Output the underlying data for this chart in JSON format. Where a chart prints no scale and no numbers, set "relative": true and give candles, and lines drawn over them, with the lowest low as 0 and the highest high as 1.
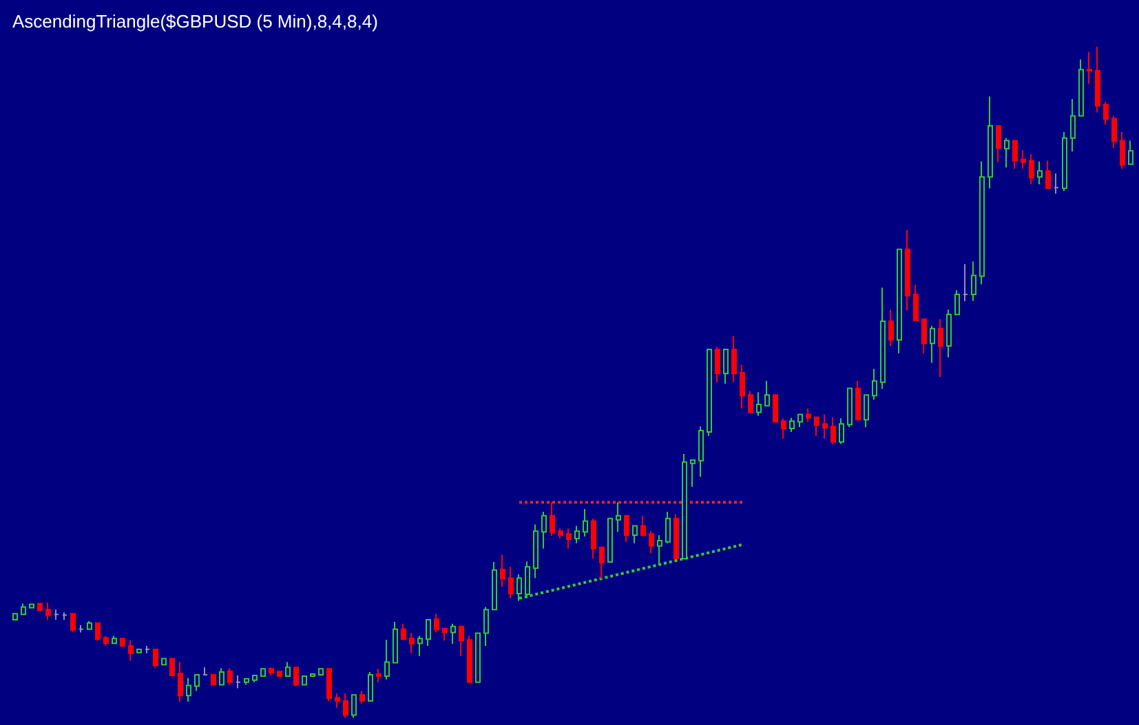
{
  "chart_data": {
    "type": "candlestick",
    "relative": true,
    "title": "AscendingTriangle($GBPUSD (5 Min),8,4,8,4)",
    "tick_labels": false,
    "grid": false,
    "categories": [
      null,
      null,
      null,
      null,
      null,
      null,
      null,
      null,
      null,
      null,
      null,
      null,
      null,
      null,
      null,
      null,
      null,
      null,
      null,
      null,
      null,
      null,
      null,
      null,
      null,
      null,
      null,
      null,
      null,
      null,
      null,
      null,
      null,
      null,
      null,
      null,
      null,
      null,
      null,
      null,
      null,
      null,
      null,
      null,
      null,
      null,
      null,
      null,
      null,
      null,
      null,
      null,
      null,
      null,
      null,
      null,
      null,
      null,
      null,
      null,
      null,
      null,
      null,
      null,
      null,
      null,
      null,
      null,
      null,
      null,
      null,
      null,
      null,
      null,
      null,
      null,
      null,
      null,
      null,
      null,
      null,
      null,
      null,
      null,
      null,
      null,
      null,
      null,
      null,
      null,
      null,
      null,
      null,
      null,
      null,
      null,
      null,
      null,
      null,
      null,
      null,
      null,
      null,
      null,
      null,
      null,
      null,
      null,
      null,
      null,
      null,
      null,
      null,
      null,
      null,
      null,
      null,
      null,
      null,
      null,
      null,
      null,
      null,
      null,
      null,
      null,
      null,
      null,
      null,
      null,
      null,
      null,
      null,
      null,
      null,
      null
    ],
    "ohlc": [
      [
        0.146,
        0.155,
        0.145,
        0.155
      ],
      [
        0.154,
        0.17,
        0.154,
        0.165
      ],
      [
        0.164,
        0.169,
        0.164,
        0.169
      ],
      [
        0.17,
        0.17,
        0.16,
        0.16
      ],
      [
        0.161,
        0.172,
        0.146,
        0.153
      ],
      [
        0.154,
        0.161,
        0.146,
        0.154
      ],
      [
        0.153,
        0.157,
        0.146,
        0.153
      ],
      [
        0.155,
        0.155,
        0.128,
        0.131
      ],
      [
        0.132,
        0.138,
        0.127,
        0.132
      ],
      [
        0.132,
        0.144,
        0.132,
        0.141
      ],
      [
        0.141,
        0.141,
        0.115,
        0.117
      ],
      [
        0.119,
        0.122,
        0.107,
        0.111
      ],
      [
        0.111,
        0.122,
        0.111,
        0.118
      ],
      [
        0.118,
        0.118,
        0.107,
        0.107
      ],
      [
        0.107,
        0.116,
        0.085,
        0.096
      ],
      [
        0.097,
        0.102,
        0.097,
        0.102
      ],
      [
        0.102,
        0.107,
        0.096,
        0.102
      ],
      [
        0.102,
        0.102,
        0.074,
        0.078
      ],
      [
        0.079,
        0.088,
        0.079,
        0.088
      ],
      [
        0.088,
        0.088,
        0.062,
        0.063
      ],
      [
        0.066,
        0.083,
        0.024,
        0.033
      ],
      [
        0.033,
        0.059,
        0.024,
        0.048
      ],
      [
        0.047,
        0.064,
        0.04,
        0.064
      ],
      [
        0.064,
        0.075,
        0.064,
        0.064
      ],
      [
        0.064,
        0.064,
        0.049,
        0.049
      ],
      [
        0.049,
        0.074,
        0.049,
        0.068
      ],
      [
        0.069,
        0.074,
        0.049,
        0.053
      ],
      [
        0.053,
        0.063,
        0.044,
        0.053
      ],
      [
        0.053,
        0.058,
        0.049,
        0.058
      ],
      [
        0.056,
        0.063,
        0.053,
        0.063
      ],
      [
        0.062,
        0.073,
        0.062,
        0.073
      ],
      [
        0.073,
        0.075,
        0.063,
        0.067
      ],
      [
        0.069,
        0.069,
        0.062,
        0.062
      ],
      [
        0.062,
        0.083,
        0.062,
        0.075
      ],
      [
        0.075,
        0.075,
        0.047,
        0.049
      ],
      [
        0.049,
        0.062,
        0.049,
        0.062
      ],
      [
        0.062,
        0.065,
        0.062,
        0.065
      ],
      [
        0.064,
        0.073,
        0.064,
        0.073
      ],
      [
        0.073,
        0.073,
        0.025,
        0.029
      ],
      [
        0.03,
        0.036,
        0.015,
        0.025
      ],
      [
        0.025,
        0.036,
        0,
        0.004
      ],
      [
        0.004,
        0.034,
        0,
        0.034
      ],
      [
        0.034,
        0.04,
        0.021,
        0.025
      ],
      [
        0.025,
        0.068,
        0.025,
        0.064
      ],
      [
        0.065,
        0.073,
        0.053,
        0.062
      ],
      [
        0.062,
        0.116,
        0.057,
        0.083
      ],
      [
        0.082,
        0.143,
        0.082,
        0.132
      ],
      [
        0.132,
        0.14,
        0.117,
        0.117
      ],
      [
        0.118,
        0.126,
        0.096,
        0.11
      ],
      [
        0.111,
        0.122,
        0.092,
        0.118
      ],
      [
        0.117,
        0.146,
        0.107,
        0.146
      ],
      [
        0.147,
        0.155,
        0.127,
        0.131
      ],
      [
        0.133,
        0.133,
        0.115,
        0.127
      ],
      [
        0.127,
        0.14,
        0.11,
        0.136
      ],
      [
        0.136,
        0.136,
        0.092,
        0.115
      ],
      [
        0.116,
        0.122,
        0.053,
        0.053
      ],
      [
        0.053,
        0.126,
        0.053,
        0.126
      ],
      [
        0.126,
        0.165,
        0.107,
        0.161
      ],
      [
        0.161,
        0.232,
        0.161,
        0.22
      ],
      [
        0.221,
        0.243,
        0.195,
        0.207
      ],
      [
        0.208,
        0.225,
        0.178,
        0.185
      ],
      [
        0.185,
        0.214,
        0.174,
        0.208
      ],
      [
        0.184,
        0.233,
        0.178,
        0.225
      ],
      [
        0.223,
        0.288,
        0.208,
        0.278
      ],
      [
        0.277,
        0.307,
        0.252,
        0.301
      ],
      [
        0.301,
        0.321,
        0.271,
        0.276
      ],
      [
        0.278,
        0.282,
        0.267,
        0.272
      ],
      [
        0.274,
        0.282,
        0.252,
        0.266
      ],
      [
        0.267,
        0.286,
        0.26,
        0.278
      ],
      [
        0.277,
        0.311,
        0.27,
        0.293
      ],
      [
        0.293,
        0.297,
        0.237,
        0.252
      ],
      [
        0.254,
        0.254,
        0.207,
        0.231
      ],
      [
        0.232,
        0.297,
        0.232,
        0.297
      ],
      [
        0.295,
        0.321,
        0.277,
        0.301
      ],
      [
        0.301,
        0.301,
        0.262,
        0.272
      ],
      [
        0.272,
        0.286,
        0.26,
        0.286
      ],
      [
        0.286,
        0.301,
        0.27,
        0.272
      ],
      [
        0.274,
        0.278,
        0.245,
        0.256
      ],
      [
        0.256,
        0.272,
        0.229,
        0.264
      ],
      [
        0.262,
        0.307,
        0.26,
        0.297
      ],
      [
        0.297,
        0.303,
        0.237,
        0.237
      ],
      [
        0.237,
        0.393,
        0.237,
        0.381
      ],
      [
        0.379,
        0.384,
        0.344,
        0.384
      ],
      [
        0.383,
        0.434,
        0.359,
        0.428
      ],
      [
        0.426,
        0.549,
        0.42,
        0.549
      ],
      [
        0.549,
        0.553,
        0.5,
        0.513
      ],
      [
        0.513,
        0.549,
        0.498,
        0.549
      ],
      [
        0.549,
        0.569,
        0.5,
        0.513
      ],
      [
        0.514,
        0.526,
        0.461,
        0.48
      ],
      [
        0.481,
        0.487,
        0.455,
        0.455
      ],
      [
        0.455,
        0.485,
        0.45,
        0.467
      ],
      [
        0.465,
        0.502,
        0.465,
        0.481
      ],
      [
        0.481,
        0.481,
        0.441,
        0.441
      ],
      [
        0.442,
        0.446,
        0.416,
        0.431
      ],
      [
        0.431,
        0.447,
        0.426,
        0.442
      ],
      [
        0.441,
        0.452,
        0.433,
        0.452
      ],
      [
        0.452,
        0.461,
        0.441,
        0.447
      ],
      [
        0.448,
        0.448,
        0.42,
        0.436
      ],
      [
        0.438,
        0.452,
        0.416,
        0.432
      ],
      [
        0.434,
        0.448,
        0.408,
        0.411
      ],
      [
        0.411,
        0.446,
        0.408,
        0.438
      ],
      [
        0.437,
        0.491,
        0.433,
        0.491
      ],
      [
        0.491,
        0.502,
        0.444,
        0.444
      ],
      [
        0.444,
        0.481,
        0.433,
        0.481
      ],
      [
        0.48,
        0.52,
        0.474,
        0.502
      ],
      [
        0.5,
        0.641,
        0.49,
        0.591
      ],
      [
        0.591,
        0.608,
        0.554,
        0.563
      ],
      [
        0.563,
        0.698,
        0.543,
        0.698
      ],
      [
        0.698,
        0.727,
        0.607,
        0.629
      ],
      [
        0.631,
        0.645,
        0.592,
        0.592
      ],
      [
        0.594,
        0.594,
        0.543,
        0.558
      ],
      [
        0.558,
        0.584,
        0.529,
        0.58
      ],
      [
        0.58,
        0.594,
        0.508,
        0.554
      ],
      [
        0.554,
        0.608,
        0.537,
        0.601
      ],
      [
        0.601,
        0.637,
        0.601,
        0.631
      ],
      [
        0.631,
        0.676,
        0.621,
        0.631
      ],
      [
        0.631,
        0.68,
        0.621,
        0.659
      ],
      [
        0.658,
        0.829,
        0.646,
        0.806
      ],
      [
        0.806,
        0.926,
        0.789,
        0.882
      ],
      [
        0.882,
        0.882,
        0.828,
        0.849
      ],
      [
        0.848,
        0.864,
        0.82,
        0.86
      ],
      [
        0.86,
        0.86,
        0.818,
        0.83
      ],
      [
        0.832,
        0.846,
        0.818,
        0.828
      ],
      [
        0.83,
        0.84,
        0.795,
        0.805
      ],
      [
        0.806,
        0.829,
        0.795,
        0.815
      ],
      [
        0.815,
        0.83,
        0.789,
        0.789
      ],
      [
        0.79,
        0.811,
        0.781,
        0.79
      ],
      [
        0.789,
        0.873,
        0.785,
        0.864
      ],
      [
        0.864,
        0.922,
        0.844,
        0.897
      ],
      [
        0.897,
        0.981,
        0.897,
        0.966
      ],
      [
        0.966,
        0.992,
        0.945,
        0.964
      ],
      [
        0.964,
        1,
        0.902,
        0.912
      ],
      [
        0.914,
        0.918,
        0.884,
        0.892
      ],
      [
        0.893,
        0.897,
        0.849,
        0.859
      ],
      [
        0.86,
        0.873,
        0.818,
        0.824
      ],
      [
        0.825,
        0.86,
        0.825,
        0.845
      ]
    ],
    "colors": [
      "#33cc33",
      "#33cc33",
      "#33cc33",
      "#ff0000",
      "#ff0000",
      "#9090b0",
      "#9090b0",
      "#ff0000",
      "#9090b0",
      "#33cc33",
      "#ff0000",
      "#ff0000",
      "#33cc33",
      "#ff0000",
      "#ff0000",
      "#33cc33",
      "#9090b0",
      "#ff0000",
      "#33cc33",
      "#ff0000",
      "#ff0000",
      "#33cc33",
      "#33cc33",
      "#9090b0",
      "#ff0000",
      "#33cc33",
      "#ff0000",
      "#9090b0",
      "#33cc33",
      "#33cc33",
      "#33cc33",
      "#ff0000",
      "#ff0000",
      "#33cc33",
      "#ff0000",
      "#33cc33",
      "#33cc33",
      "#33cc33",
      "#ff0000",
      "#ff0000",
      "#ff0000",
      "#33cc33",
      "#ff0000",
      "#33cc33",
      "#ff0000",
      "#33cc33",
      "#33cc33",
      "#ff0000",
      "#ff0000",
      "#33cc33",
      "#33cc33",
      "#ff0000",
      "#ff0000",
      "#33cc33",
      "#ff0000",
      "#ff0000",
      "#33cc33",
      "#33cc33",
      "#33cc33",
      "#ff0000",
      "#ff0000",
      "#33cc33",
      "#33cc33",
      "#33cc33",
      "#33cc33",
      "#ff0000",
      "#ff0000",
      "#ff0000",
      "#33cc33",
      "#33cc33",
      "#ff0000",
      "#ff0000",
      "#33cc33",
      "#33cc33",
      "#ff0000",
      "#33cc33",
      "#ff0000",
      "#ff0000",
      "#33cc33",
      "#33cc33",
      "#ff0000",
      "#33cc33",
      "#33cc33",
      "#33cc33",
      "#33cc33",
      "#ff0000",
      "#33cc33",
      "#ff0000",
      "#ff0000",
      "#ff0000",
      "#33cc33",
      "#33cc33",
      "#ff0000",
      "#ff0000",
      "#33cc33",
      "#33cc33",
      "#ff0000",
      "#ff0000",
      "#ff0000",
      "#ff0000",
      "#33cc33",
      "#33cc33",
      "#ff0000",
      "#33cc33",
      "#33cc33",
      "#33cc33",
      "#ff0000",
      "#33cc33",
      "#ff0000",
      "#ff0000",
      "#ff0000",
      "#33cc33",
      "#ff0000",
      "#33cc33",
      "#33cc33",
      "#9090b0",
      "#33cc33",
      "#33cc33",
      "#33cc33",
      "#ff0000",
      "#33cc33",
      "#ff0000",
      "#ff0000",
      "#ff0000",
      "#33cc33",
      "#ff0000",
      "#9090b0",
      "#33cc33",
      "#33cc33",
      "#33cc33",
      "#ff0000",
      "#ff0000",
      "#ff0000",
      "#ff0000",
      "#ff0000",
      "#33cc33"
    ],
    "series": [
      {
        "type": "line",
        "color": "#e02828",
        "line_style": "dotted",
        "values": [
          null,
          null,
          null,
          null,
          null,
          null,
          null,
          null,
          null,
          null,
          null,
          null,
          null,
          null,
          null,
          null,
          null,
          null,
          null,
          null,
          null,
          null,
          null,
          null,
          null,
          null,
          null,
          null,
          null,
          null,
          null,
          null,
          null,
          null,
          null,
          null,
          null,
          null,
          null,
          null,
          null,
          null,
          null,
          null,
          null,
          null,
          null,
          null,
          null,
          null,
          null,
          null,
          null,
          null,
          null,
          null,
          null,
          null,
          null,
          null,
          null,
          0.321,
          null,
          null,
          null,
          null,
          null,
          null,
          null,
          null,
          null,
          null,
          null,
          null,
          null,
          null,
          null,
          null,
          null,
          null,
          null,
          null,
          null,
          null,
          null,
          null,
          null,
          null,
          0.321,
          null,
          null,
          null,
          null,
          null,
          null,
          null,
          null,
          null,
          null,
          null,
          null,
          null,
          null,
          null,
          null,
          null,
          null,
          null,
          null,
          null,
          null,
          null,
          null,
          null,
          null,
          null,
          null,
          null,
          null,
          null,
          null,
          null,
          null,
          null,
          null,
          null,
          null,
          null,
          null,
          null,
          null,
          null,
          null,
          null,
          null,
          null
        ]
      },
      {
        "type": "line",
        "color": "#33cc33",
        "line_style": "dotted",
        "values": [
          null,
          null,
          null,
          null,
          null,
          null,
          null,
          null,
          null,
          null,
          null,
          null,
          null,
          null,
          null,
          null,
          null,
          null,
          null,
          null,
          null,
          null,
          null,
          null,
          null,
          null,
          null,
          null,
          null,
          null,
          null,
          null,
          null,
          null,
          null,
          null,
          null,
          null,
          null,
          null,
          null,
          null,
          null,
          null,
          null,
          null,
          null,
          null,
          null,
          null,
          null,
          null,
          null,
          null,
          null,
          null,
          null,
          null,
          null,
          null,
          null,
          0.178,
          null,
          null,
          null,
          null,
          null,
          null,
          null,
          null,
          null,
          null,
          null,
          null,
          null,
          null,
          null,
          null,
          null,
          null,
          null,
          null,
          null,
          null,
          null,
          null,
          null,
          null,
          0.258,
          null,
          null,
          null,
          null,
          null,
          null,
          null,
          null,
          null,
          null,
          null,
          null,
          null,
          null,
          null,
          null,
          null,
          null,
          null,
          null,
          null,
          null,
          null,
          null,
          null,
          null,
          null,
          null,
          null,
          null,
          null,
          null,
          null,
          null,
          null,
          null,
          null,
          null,
          null,
          null,
          null,
          null,
          null,
          null,
          null,
          null,
          null
        ]
      }
    ]
  }
}
